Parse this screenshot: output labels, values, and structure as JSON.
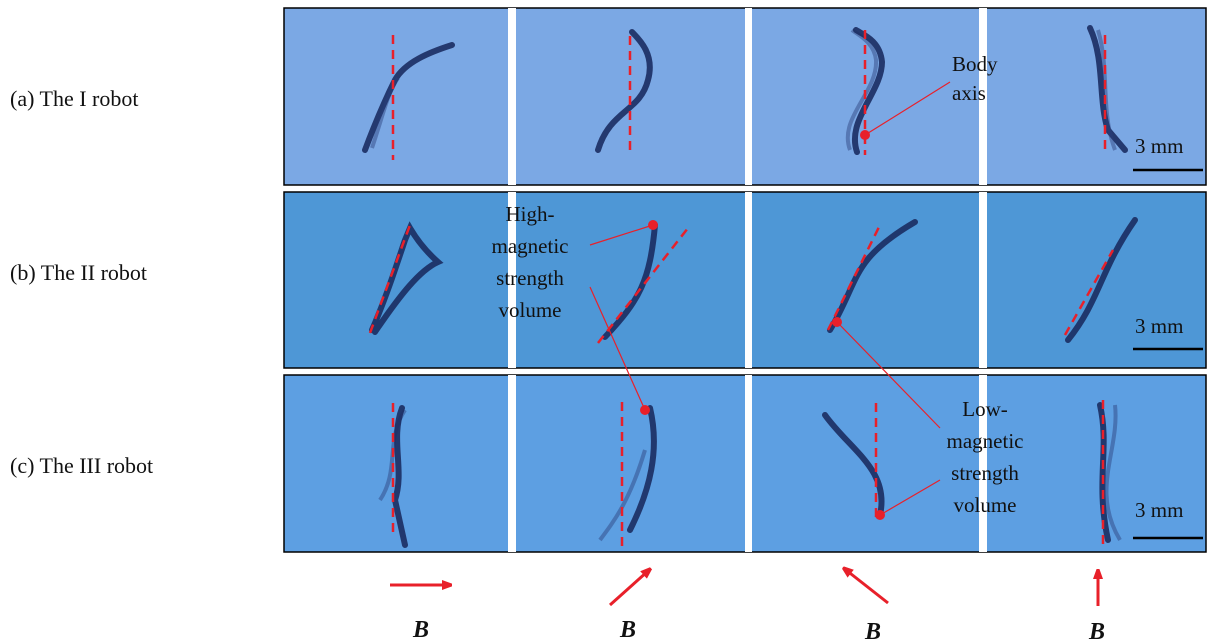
{
  "row_labels": [
    "(a) The I robot",
    "(b) The II robot",
    "(c) The III robot"
  ],
  "annotations": {
    "body_axis": [
      "Body",
      "axis"
    ],
    "high_magnetic": [
      "High-",
      "magnetic",
      "strength",
      "volume"
    ],
    "low_magnetic": [
      "Low-",
      "magnetic",
      "strength",
      "volume"
    ]
  },
  "scale_bars": [
    "3 mm",
    "3 mm",
    "3 mm"
  ],
  "field_labels": [
    "B",
    "B",
    "B",
    "B"
  ]
}
